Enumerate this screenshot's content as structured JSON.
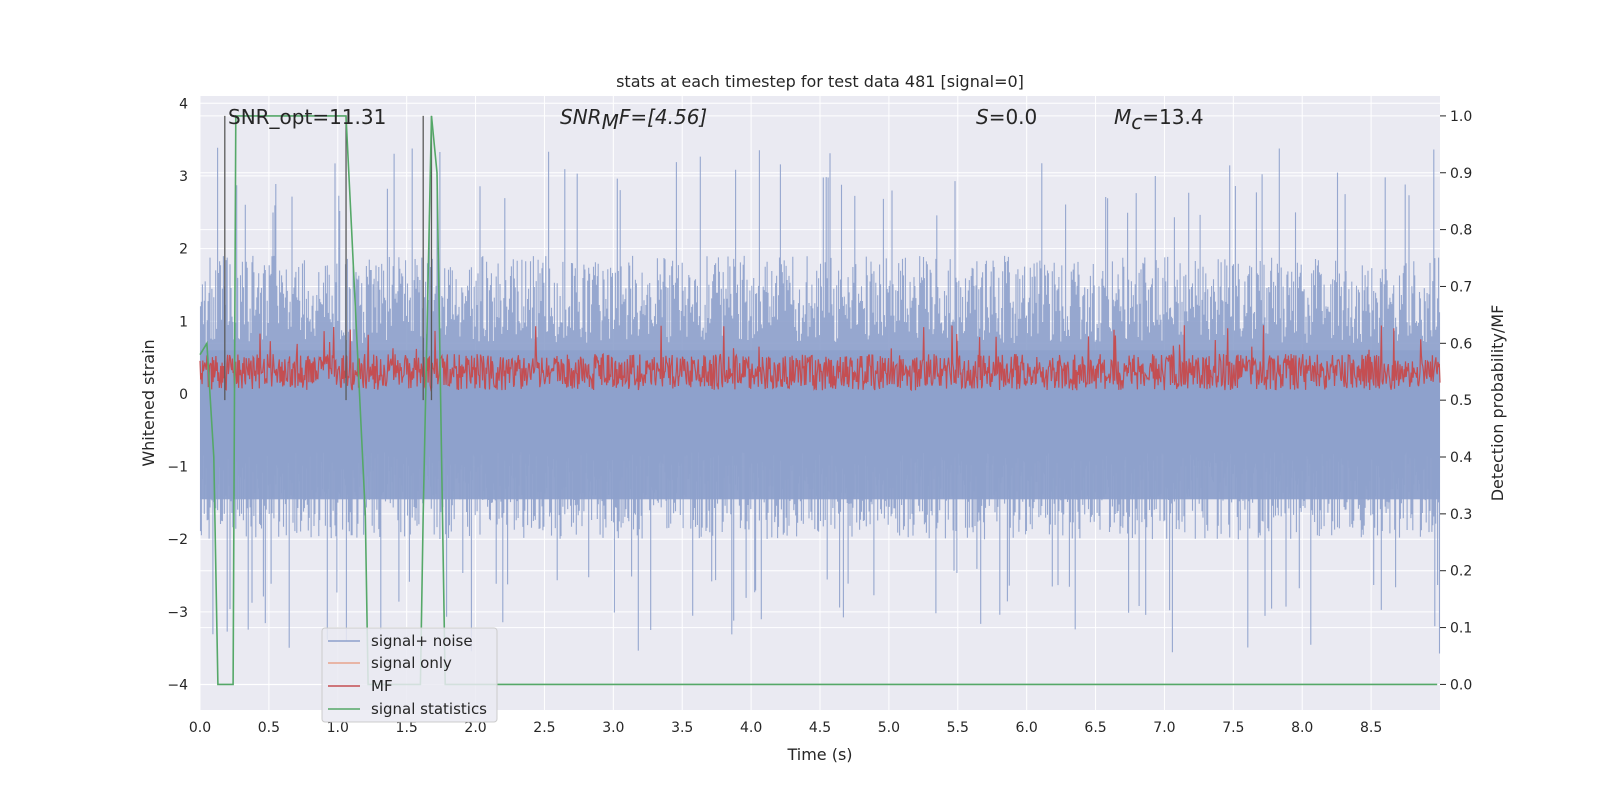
{
  "chart_data": {
    "type": "line",
    "title": "stats at each timestep for test data 481 [signal=0]",
    "xlabel": "Time (s)",
    "ylabel": "Whitened strain",
    "y2label": "Detection probability/MF",
    "xlim": [
      0,
      9.0
    ],
    "ylim": [
      -4.35,
      4.1
    ],
    "y2lim": [
      -0.045,
      1.035
    ],
    "x_ticks": [
      0.0,
      0.5,
      1.0,
      1.5,
      2.0,
      2.5,
      3.0,
      3.5,
      4.0,
      4.5,
      5.0,
      5.5,
      6.0,
      6.5,
      7.0,
      7.5,
      8.0,
      8.5
    ],
    "x_tick_labels": [
      "0.0",
      "0.5",
      "1.0",
      "1.5",
      "2.0",
      "2.5",
      "3.0",
      "3.5",
      "4.0",
      "4.5",
      "5.0",
      "5.5",
      "6.0",
      "6.5",
      "7.0",
      "7.5",
      "8.0",
      "8.5"
    ],
    "y_ticks": [
      -4,
      -3,
      -2,
      -1,
      0,
      1,
      2,
      3,
      4
    ],
    "y_tick_labels": [
      "−4",
      "−3",
      "−2",
      "−1",
      "0",
      "1",
      "2",
      "3",
      "4"
    ],
    "y2_ticks": [
      0.0,
      0.1,
      0.2,
      0.3,
      0.4,
      0.5,
      0.6,
      0.7,
      0.8,
      0.9,
      1.0
    ],
    "y2_tick_labels": [
      "0.0",
      "0.1",
      "0.2",
      "0.3",
      "0.4",
      "0.5",
      "0.6",
      "0.7",
      "0.8",
      "0.9",
      "1.0"
    ],
    "grid": true,
    "legend_placement": "lower-left",
    "series": [
      {
        "name": "signal+ noise",
        "color": "#8da0cb",
        "axis": "left",
        "description_values": "dense noise roughly between -1.8 and 1.6 with spikes reaching about 3.4 and -4.0"
      },
      {
        "name": "signal only",
        "color": "#e8a38c",
        "axis": "left",
        "values": []
      },
      {
        "name": "MF",
        "color": "#c44e52",
        "axis": "left",
        "description_values": "dense trace roughly between 0 and 0.6, peaks about 1.0"
      },
      {
        "name": "signal statistics",
        "color": "#55a868",
        "axis": "right",
        "x": [
          0.0,
          0.05,
          0.1,
          0.13,
          0.18,
          0.24,
          0.26,
          1.0,
          1.06,
          1.1,
          1.2,
          1.22,
          1.3,
          1.6,
          1.62,
          1.68,
          1.72,
          1.78,
          1.9,
          8.98
        ],
        "y": [
          0.58,
          0.6,
          0.4,
          0.0,
          0.0,
          0.0,
          1.0,
          1.0,
          1.0,
          0.8,
          0.3,
          0.0,
          0.0,
          0.0,
          0.3,
          1.0,
          0.9,
          0.0,
          0.0,
          0.0
        ]
      }
    ],
    "vertical_lines": [
      0.18,
      1.06,
      1.62,
      1.68
    ],
    "annotations": [
      {
        "text": "SNR_opt=11.31"
      },
      {
        "base": "SNR",
        "sub": "M",
        "rest": "F=[4.56]"
      },
      {
        "base": "S",
        "rest": "=0.0"
      },
      {
        "base": "M",
        "sub": "c",
        "rest": "=13.4"
      }
    ]
  },
  "colors": {
    "plot_bg": "#eaeaf2",
    "grid": "#ffffff",
    "vline": "#5a5a5a"
  }
}
